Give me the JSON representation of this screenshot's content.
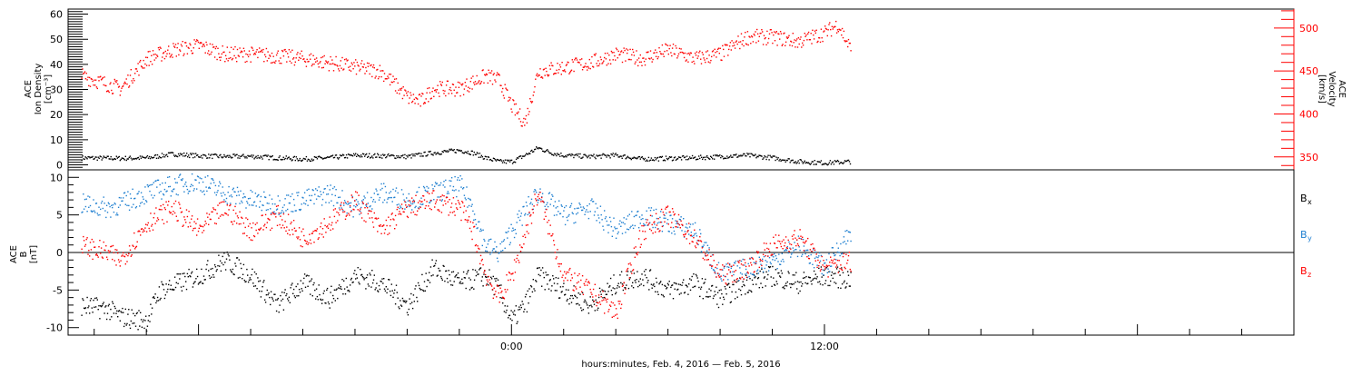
{
  "chart_data": [
    {
      "type": "scatter",
      "panel": "top",
      "ylabel_lines": [
        "ACE",
        "Ion Density",
        "[cm⁻³]"
      ],
      "y2label_lines": [
        "ACE",
        "Velocity",
        "[km/s]"
      ],
      "xlabel": "hours:minutes, Feb.  4, 2016 — Feb.  5, 2016",
      "xlim": [
        -17,
        30
      ],
      "x_ticks": [
        {
          "value": 0,
          "label": "0:00"
        },
        {
          "value": 12,
          "label": "12:00"
        }
      ],
      "ylim": [
        -2,
        62
      ],
      "y_ticks": [
        0,
        10,
        20,
        30,
        40,
        50,
        60
      ],
      "y2lim": [
        335,
        522
      ],
      "y2_ticks": [
        350,
        400,
        450,
        500
      ],
      "series": [
        {
          "axis": "left",
          "color": "#000000",
          "points": [
            [
              -16.5,
              3
            ],
            [
              -15,
              2.8
            ],
            [
              -14,
              3
            ],
            [
              -13,
              4.5
            ],
            [
              -12,
              3.8
            ],
            [
              -11,
              3.5
            ],
            [
              -10,
              3.6
            ],
            [
              -9,
              3
            ],
            [
              -8,
              2.5
            ],
            [
              -7,
              3
            ],
            [
              -6,
              4
            ],
            [
              -5,
              3.8
            ],
            [
              -4,
              3.5
            ],
            [
              -3,
              5
            ],
            [
              -2,
              6
            ],
            [
              -1.5,
              5
            ],
            [
              -1,
              3
            ],
            [
              -0.5,
              1.5
            ],
            [
              0,
              1.5
            ],
            [
              0.5,
              4
            ],
            [
              1,
              7
            ],
            [
              1.5,
              5
            ],
            [
              2,
              4
            ],
            [
              3,
              3.5
            ],
            [
              4,
              4
            ],
            [
              5,
              2.5
            ],
            [
              6,
              2.8
            ],
            [
              7,
              3
            ],
            [
              8,
              3.5
            ],
            [
              9,
              4
            ],
            [
              10,
              3
            ],
            [
              11,
              1.5
            ],
            [
              12,
              1
            ],
            [
              13,
              1.5
            ]
          ]
        },
        {
          "axis": "right",
          "color": "#ff0000",
          "points": [
            [
              -16.5,
              445
            ],
            [
              -16,
              440
            ],
            [
              -15,
              430
            ],
            [
              -14,
              465
            ],
            [
              -13,
              475
            ],
            [
              -12,
              480
            ],
            [
              -11,
              470
            ],
            [
              -10,
              470
            ],
            [
              -9,
              468
            ],
            [
              -8,
              465
            ],
            [
              -7,
              460
            ],
            [
              -6,
              455
            ],
            [
              -5,
              450
            ],
            [
              -4,
              420
            ],
            [
              -3.5,
              415
            ],
            [
              -3,
              430
            ],
            [
              -2,
              430
            ],
            [
              -1,
              445
            ],
            [
              -0.5,
              440
            ],
            [
              0,
              410
            ],
            [
              0.5,
              390
            ],
            [
              1,
              450
            ],
            [
              2,
              455
            ],
            [
              3,
              460
            ],
            [
              4,
              470
            ],
            [
              5,
              465
            ],
            [
              6,
              475
            ],
            [
              7,
              465
            ],
            [
              8,
              470
            ],
            [
              9,
              490
            ],
            [
              10,
              490
            ],
            [
              11,
              485
            ],
            [
              12,
              495
            ],
            [
              12.5,
              505
            ],
            [
              13,
              475
            ]
          ]
        }
      ]
    },
    {
      "type": "scatter",
      "panel": "bottom",
      "ylabel_lines": [
        "ACE",
        "B",
        "[nT]"
      ],
      "xlim": [
        -17,
        30
      ],
      "x_ticks": [
        {
          "value": 0,
          "label": "0:00"
        },
        {
          "value": 12,
          "label": "12:00"
        }
      ],
      "ylim": [
        -11,
        11
      ],
      "y_ticks": [
        -10,
        -5,
        0,
        5,
        10
      ],
      "zero_line": true,
      "legend": [
        {
          "label": "B",
          "sub": "x",
          "color": "#000000"
        },
        {
          "label": "B",
          "sub": "y",
          "color": "#1e7fd0"
        },
        {
          "label": "B",
          "sub": "z",
          "color": "#ff0000"
        }
      ],
      "series": [
        {
          "name": "Bx",
          "color": "#000000",
          "points": [
            [
              -16.5,
              -7
            ],
            [
              -15.5,
              -7.5
            ],
            [
              -15,
              -8.5
            ],
            [
              -14,
              -9
            ],
            [
              -13.5,
              -5
            ],
            [
              -12,
              -3
            ],
            [
              -11,
              -1
            ],
            [
              -10,
              -3
            ],
            [
              -9,
              -7
            ],
            [
              -8,
              -4
            ],
            [
              -7,
              -6
            ],
            [
              -6,
              -3
            ],
            [
              -5,
              -4
            ],
            [
              -4,
              -7
            ],
            [
              -3,
              -2
            ],
            [
              -2,
              -4
            ],
            [
              -1,
              -3
            ],
            [
              -0.5,
              -5
            ],
            [
              0,
              -9
            ],
            [
              0.5,
              -7
            ],
            [
              1,
              -3
            ],
            [
              2,
              -5
            ],
            [
              3,
              -7
            ],
            [
              4,
              -4
            ],
            [
              5,
              -3
            ],
            [
              6,
              -5
            ],
            [
              7,
              -4
            ],
            [
              8,
              -6
            ],
            [
              9,
              -4
            ],
            [
              10,
              -3
            ],
            [
              11,
              -4
            ],
            [
              12,
              -3
            ],
            [
              13,
              -3.5
            ]
          ]
        },
        {
          "name": "By",
          "color": "#1e7fd0",
          "points": [
            [
              -16.5,
              6.5
            ],
            [
              -15.5,
              6
            ],
            [
              -15,
              6.5
            ],
            [
              -14,
              8
            ],
            [
              -13,
              9
            ],
            [
              -12,
              9.5
            ],
            [
              -11,
              8
            ],
            [
              -10,
              7
            ],
            [
              -9,
              6.5
            ],
            [
              -8,
              7
            ],
            [
              -7,
              8
            ],
            [
              -6,
              6
            ],
            [
              -5,
              8
            ],
            [
              -4,
              7
            ],
            [
              -3,
              8
            ],
            [
              -2,
              9
            ],
            [
              -1.5,
              6
            ],
            [
              -1,
              1
            ],
            [
              -0.5,
              0
            ],
            [
              0,
              3
            ],
            [
              1,
              8
            ],
            [
              2,
              5
            ],
            [
              3,
              6
            ],
            [
              4,
              3
            ],
            [
              5,
              5
            ],
            [
              6,
              4
            ],
            [
              7,
              3
            ],
            [
              8,
              -3
            ],
            [
              9,
              -2
            ],
            [
              10,
              -1
            ],
            [
              11,
              1
            ],
            [
              12,
              -2
            ],
            [
              13,
              3
            ]
          ]
        },
        {
          "name": "Bz",
          "color": "#ff0000",
          "points": [
            [
              -16.5,
              1
            ],
            [
              -15.5,
              0
            ],
            [
              -15,
              -1
            ],
            [
              -14,
              4
            ],
            [
              -13,
              6
            ],
            [
              -12,
              3
            ],
            [
              -11,
              6
            ],
            [
              -10,
              3
            ],
            [
              -9,
              5
            ],
            [
              -8,
              2
            ],
            [
              -7,
              4
            ],
            [
              -6,
              7
            ],
            [
              -5,
              3
            ],
            [
              -4,
              6
            ],
            [
              -3,
              7
            ],
            [
              -2,
              6
            ],
            [
              -1.5,
              3
            ],
            [
              -1,
              -3
            ],
            [
              -0.5,
              -6
            ],
            [
              0,
              -3
            ],
            [
              1,
              8
            ],
            [
              2,
              -3
            ],
            [
              3,
              -5
            ],
            [
              4,
              -8
            ],
            [
              5,
              3
            ],
            [
              6,
              5
            ],
            [
              7,
              2
            ],
            [
              8,
              -3
            ],
            [
              9,
              -2
            ],
            [
              10,
              1
            ],
            [
              11,
              2
            ],
            [
              12,
              -2
            ],
            [
              13,
              -1
            ]
          ]
        }
      ]
    }
  ]
}
